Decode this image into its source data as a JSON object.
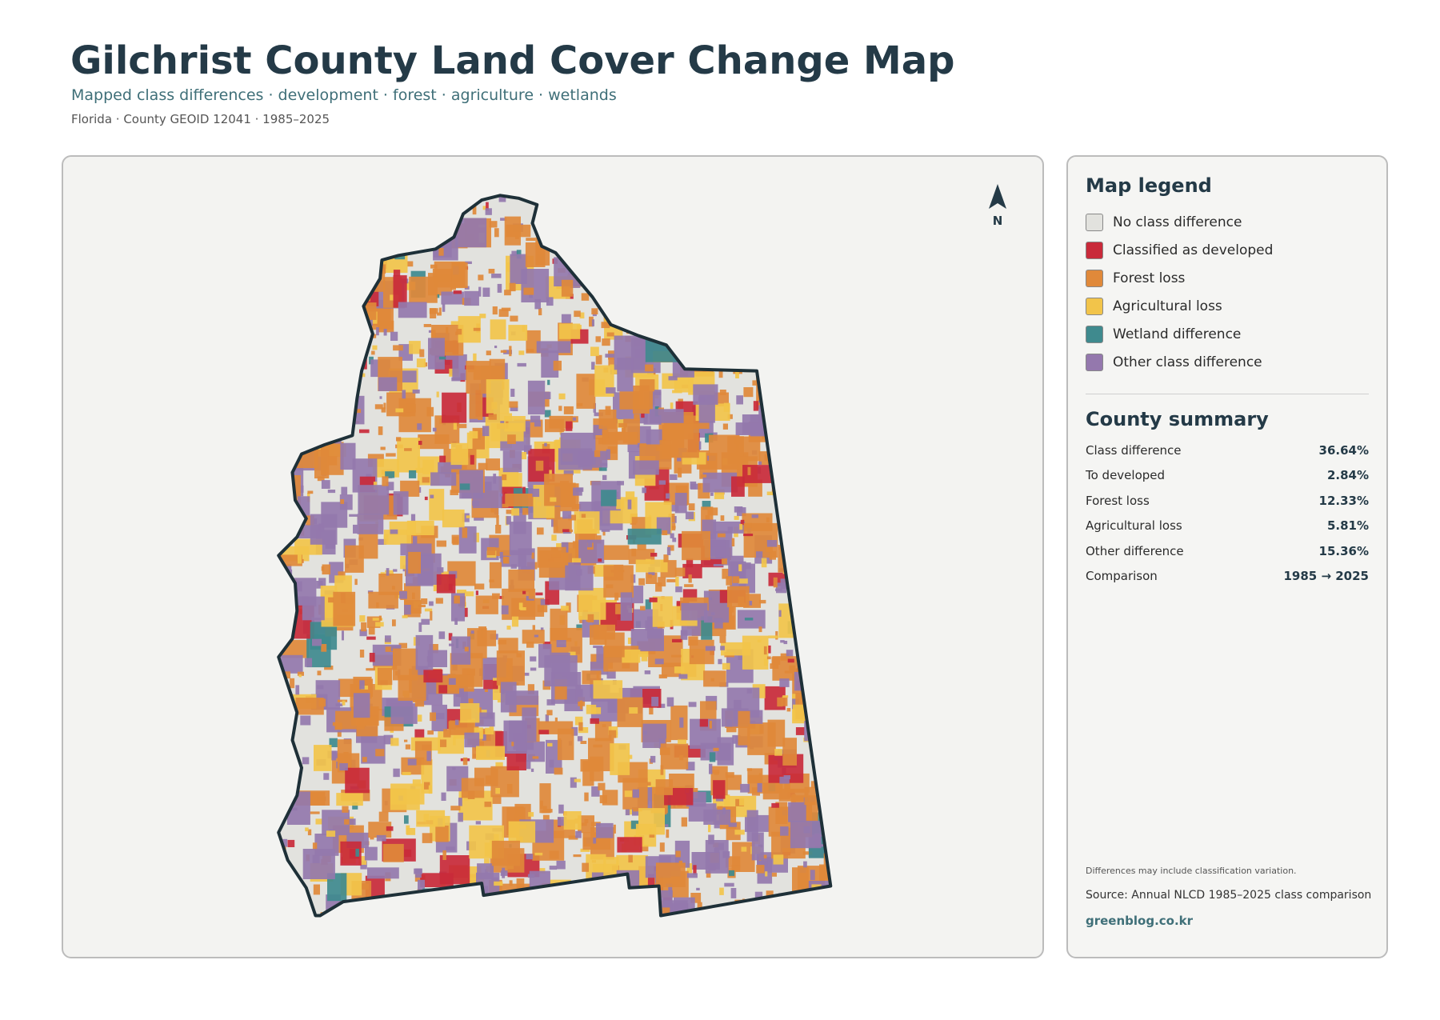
{
  "header": {
    "title": "Gilchrist County Land Cover Change Map",
    "subtitle": "Mapped class differences · development · forest · agriculture · wetlands",
    "meta": "Florida · County GEOID 12041 · 1985–2025"
  },
  "map": {
    "north_label": "N"
  },
  "legend": {
    "title": "Map legend",
    "items": [
      {
        "label": "No class difference",
        "color": "#e2e2de"
      },
      {
        "label": "Classified as developed",
        "color": "#c92a3a"
      },
      {
        "label": "Forest loss",
        "color": "#e0893a"
      },
      {
        "label": "Agricultural loss",
        "color": "#f2c44a"
      },
      {
        "label": "Wetland difference",
        "color": "#3f8a8e"
      },
      {
        "label": "Other class difference",
        "color": "#9478ad"
      }
    ]
  },
  "summary": {
    "title": "County summary",
    "rows": [
      [
        "Class difference",
        "36.64%"
      ],
      [
        "To developed",
        "2.84%"
      ],
      [
        "Forest loss",
        "12.33%"
      ],
      [
        "Agricultural loss",
        "5.81%"
      ],
      [
        "Other difference",
        "15.36%"
      ],
      [
        "Comparison",
        "1985 → 2025"
      ]
    ]
  },
  "footer": {
    "note": "Differences may include classification variation.",
    "source": "Source: Annual NLCD 1985–2025 class comparison",
    "credit": "greenblog.co.kr"
  }
}
